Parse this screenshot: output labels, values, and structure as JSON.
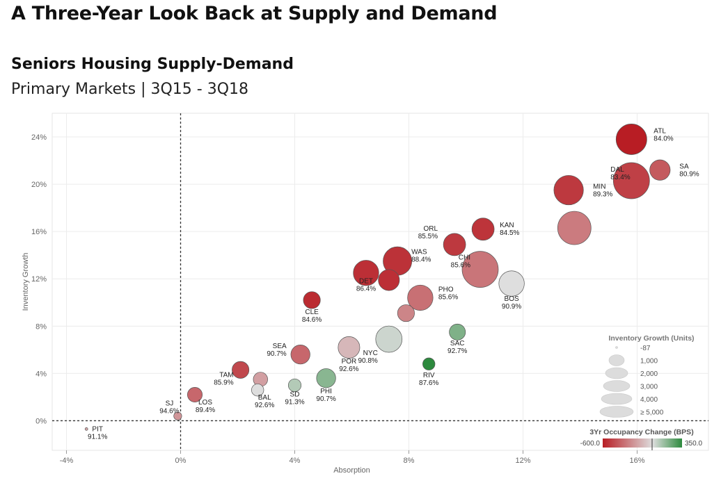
{
  "page": {
    "title": "A Three-Year Look Back at Supply and Demand",
    "subtitle": "Seniors Housing Supply-Demand",
    "subtitle2": "Primary Markets | 3Q15 - 3Q18"
  },
  "chart_data": {
    "type": "scatter",
    "xlabel": "Absorption",
    "ylabel": "Inventory Growth",
    "xlim": [
      -4.5,
      18.5
    ],
    "ylim": [
      -2.5,
      26
    ],
    "xticks": [
      "-4%",
      "0%",
      "4%",
      "8%",
      "12%",
      "16%"
    ],
    "xtick_values": [
      -4,
      0,
      4,
      8,
      12,
      16
    ],
    "yticks": [
      "0%",
      "4%",
      "8%",
      "12%",
      "16%",
      "20%",
      "24%"
    ],
    "ytick_values": [
      0,
      4,
      8,
      12,
      16,
      20,
      24
    ],
    "grid": true,
    "reference_lines": {
      "x": 0,
      "y": 0
    },
    "points": [
      {
        "market": "ATL",
        "occupancy": "84.0%",
        "x": 15.8,
        "y": 23.8,
        "units": 3500,
        "occ_change": -600
      },
      {
        "market": "SA",
        "occupancy": "80.9%",
        "x": 16.8,
        "y": 21.2,
        "units": 1400,
        "occ_change": -350
      },
      {
        "market": "DAL",
        "occupancy": "83.4%",
        "x": 15.8,
        "y": 20.3,
        "units": 5000,
        "occ_change": -450
      },
      {
        "market": "MIN",
        "occupancy": "89.3%",
        "x": 13.6,
        "y": 19.5,
        "units": 3200,
        "occ_change": -480
      },
      {
        "market": "",
        "occupancy": "",
        "x": 13.8,
        "y": 16.3,
        "units": 4200,
        "occ_change": -230
      },
      {
        "market": "KAN",
        "occupancy": "84.5%",
        "x": 10.6,
        "y": 16.2,
        "units": 1700,
        "occ_change": -500
      },
      {
        "market": "ORL",
        "occupancy": "85.5%",
        "x": 9.6,
        "y": 14.9,
        "units": 1700,
        "occ_change": -480
      },
      {
        "market": "WAS",
        "occupancy": "88.4%",
        "x": 7.6,
        "y": 13.5,
        "units": 3000,
        "occ_change": -510
      },
      {
        "market": "CHI",
        "occupancy": "85.6%",
        "x": 10.5,
        "y": 12.8,
        "units": 5000,
        "occ_change": -250
      },
      {
        "market": "DET",
        "occupancy": "86.4%",
        "x": 6.5,
        "y": 12.5,
        "units": 2300,
        "occ_change": -520
      },
      {
        "market": "",
        "occupancy": "",
        "x": 7.3,
        "y": 11.9,
        "units": 1500,
        "occ_change": -520
      },
      {
        "market": "BOS",
        "occupancy": "90.9%",
        "x": 11.6,
        "y": 11.6,
        "units": 2300,
        "occ_change": 0
      },
      {
        "market": "PHO",
        "occupancy": "85.6%",
        "x": 8.4,
        "y": 10.4,
        "units": 2300,
        "occ_change": -270
      },
      {
        "market": "CLE",
        "occupancy": "84.6%",
        "x": 4.6,
        "y": 10.2,
        "units": 900,
        "occ_change": -540
      },
      {
        "market": "",
        "occupancy": "",
        "x": 7.9,
        "y": 9.1,
        "units": 900,
        "occ_change": -200
      },
      {
        "market": "SAC",
        "occupancy": "92.7%",
        "x": 9.7,
        "y": 7.5,
        "units": 800,
        "occ_change": 160
      },
      {
        "market": "NYC",
        "occupancy": "90.8%",
        "x": 7.3,
        "y": 6.9,
        "units": 2500,
        "occ_change": 20
      },
      {
        "market": "POR",
        "occupancy": "92.6%",
        "x": 5.9,
        "y": 6.2,
        "units": 1600,
        "occ_change": -60
      },
      {
        "market": "SEA",
        "occupancy": "90.7%",
        "x": 4.2,
        "y": 5.6,
        "units": 1200,
        "occ_change": -300
      },
      {
        "market": "RIV",
        "occupancy": "87.6%",
        "x": 8.7,
        "y": 4.8,
        "units": 400,
        "occ_change": 350
      },
      {
        "market": "TAM",
        "occupancy": "85.9%",
        "x": 2.1,
        "y": 4.3,
        "units": 900,
        "occ_change": -420
      },
      {
        "market": "PHI",
        "occupancy": "90.7%",
        "x": 5.1,
        "y": 3.6,
        "units": 1200,
        "occ_change": 140
      },
      {
        "market": "",
        "occupancy": "",
        "x": 2.8,
        "y": 3.5,
        "units": 600,
        "occ_change": -120
      },
      {
        "market": "SD",
        "occupancy": "91.3%",
        "x": 4.0,
        "y": 3.0,
        "units": 450,
        "occ_change": 60
      },
      {
        "market": "BAL",
        "occupancy": "92.6%",
        "x": 2.7,
        "y": 2.6,
        "units": 400,
        "occ_change": 0
      },
      {
        "market": "LOS",
        "occupancy": "89.4%",
        "x": 0.5,
        "y": 2.2,
        "units": 650,
        "occ_change": -300
      },
      {
        "market": "SJ",
        "occupancy": "94.6%",
        "x": -0.1,
        "y": 0.4,
        "units": 120,
        "occ_change": -150
      },
      {
        "market": "PIT",
        "occupancy": "91.1%",
        "x": -3.3,
        "y": -0.7,
        "units": -87,
        "occ_change": -100
      }
    ],
    "size_legend": {
      "title": "Inventory Growth (Units)",
      "entries": [
        "-87",
        "1,000",
        "2,000",
        "3,000",
        "4,000",
        "≥ 5,000"
      ]
    },
    "color_legend": {
      "title": "3Yr Occupancy Change (BPS)",
      "min_label": "-600.0",
      "max_label": "350.0",
      "min": -600,
      "max": 350,
      "low_color": "#b81d24",
      "mid_color": "#dedede",
      "high_color": "#2d8a3e"
    }
  }
}
